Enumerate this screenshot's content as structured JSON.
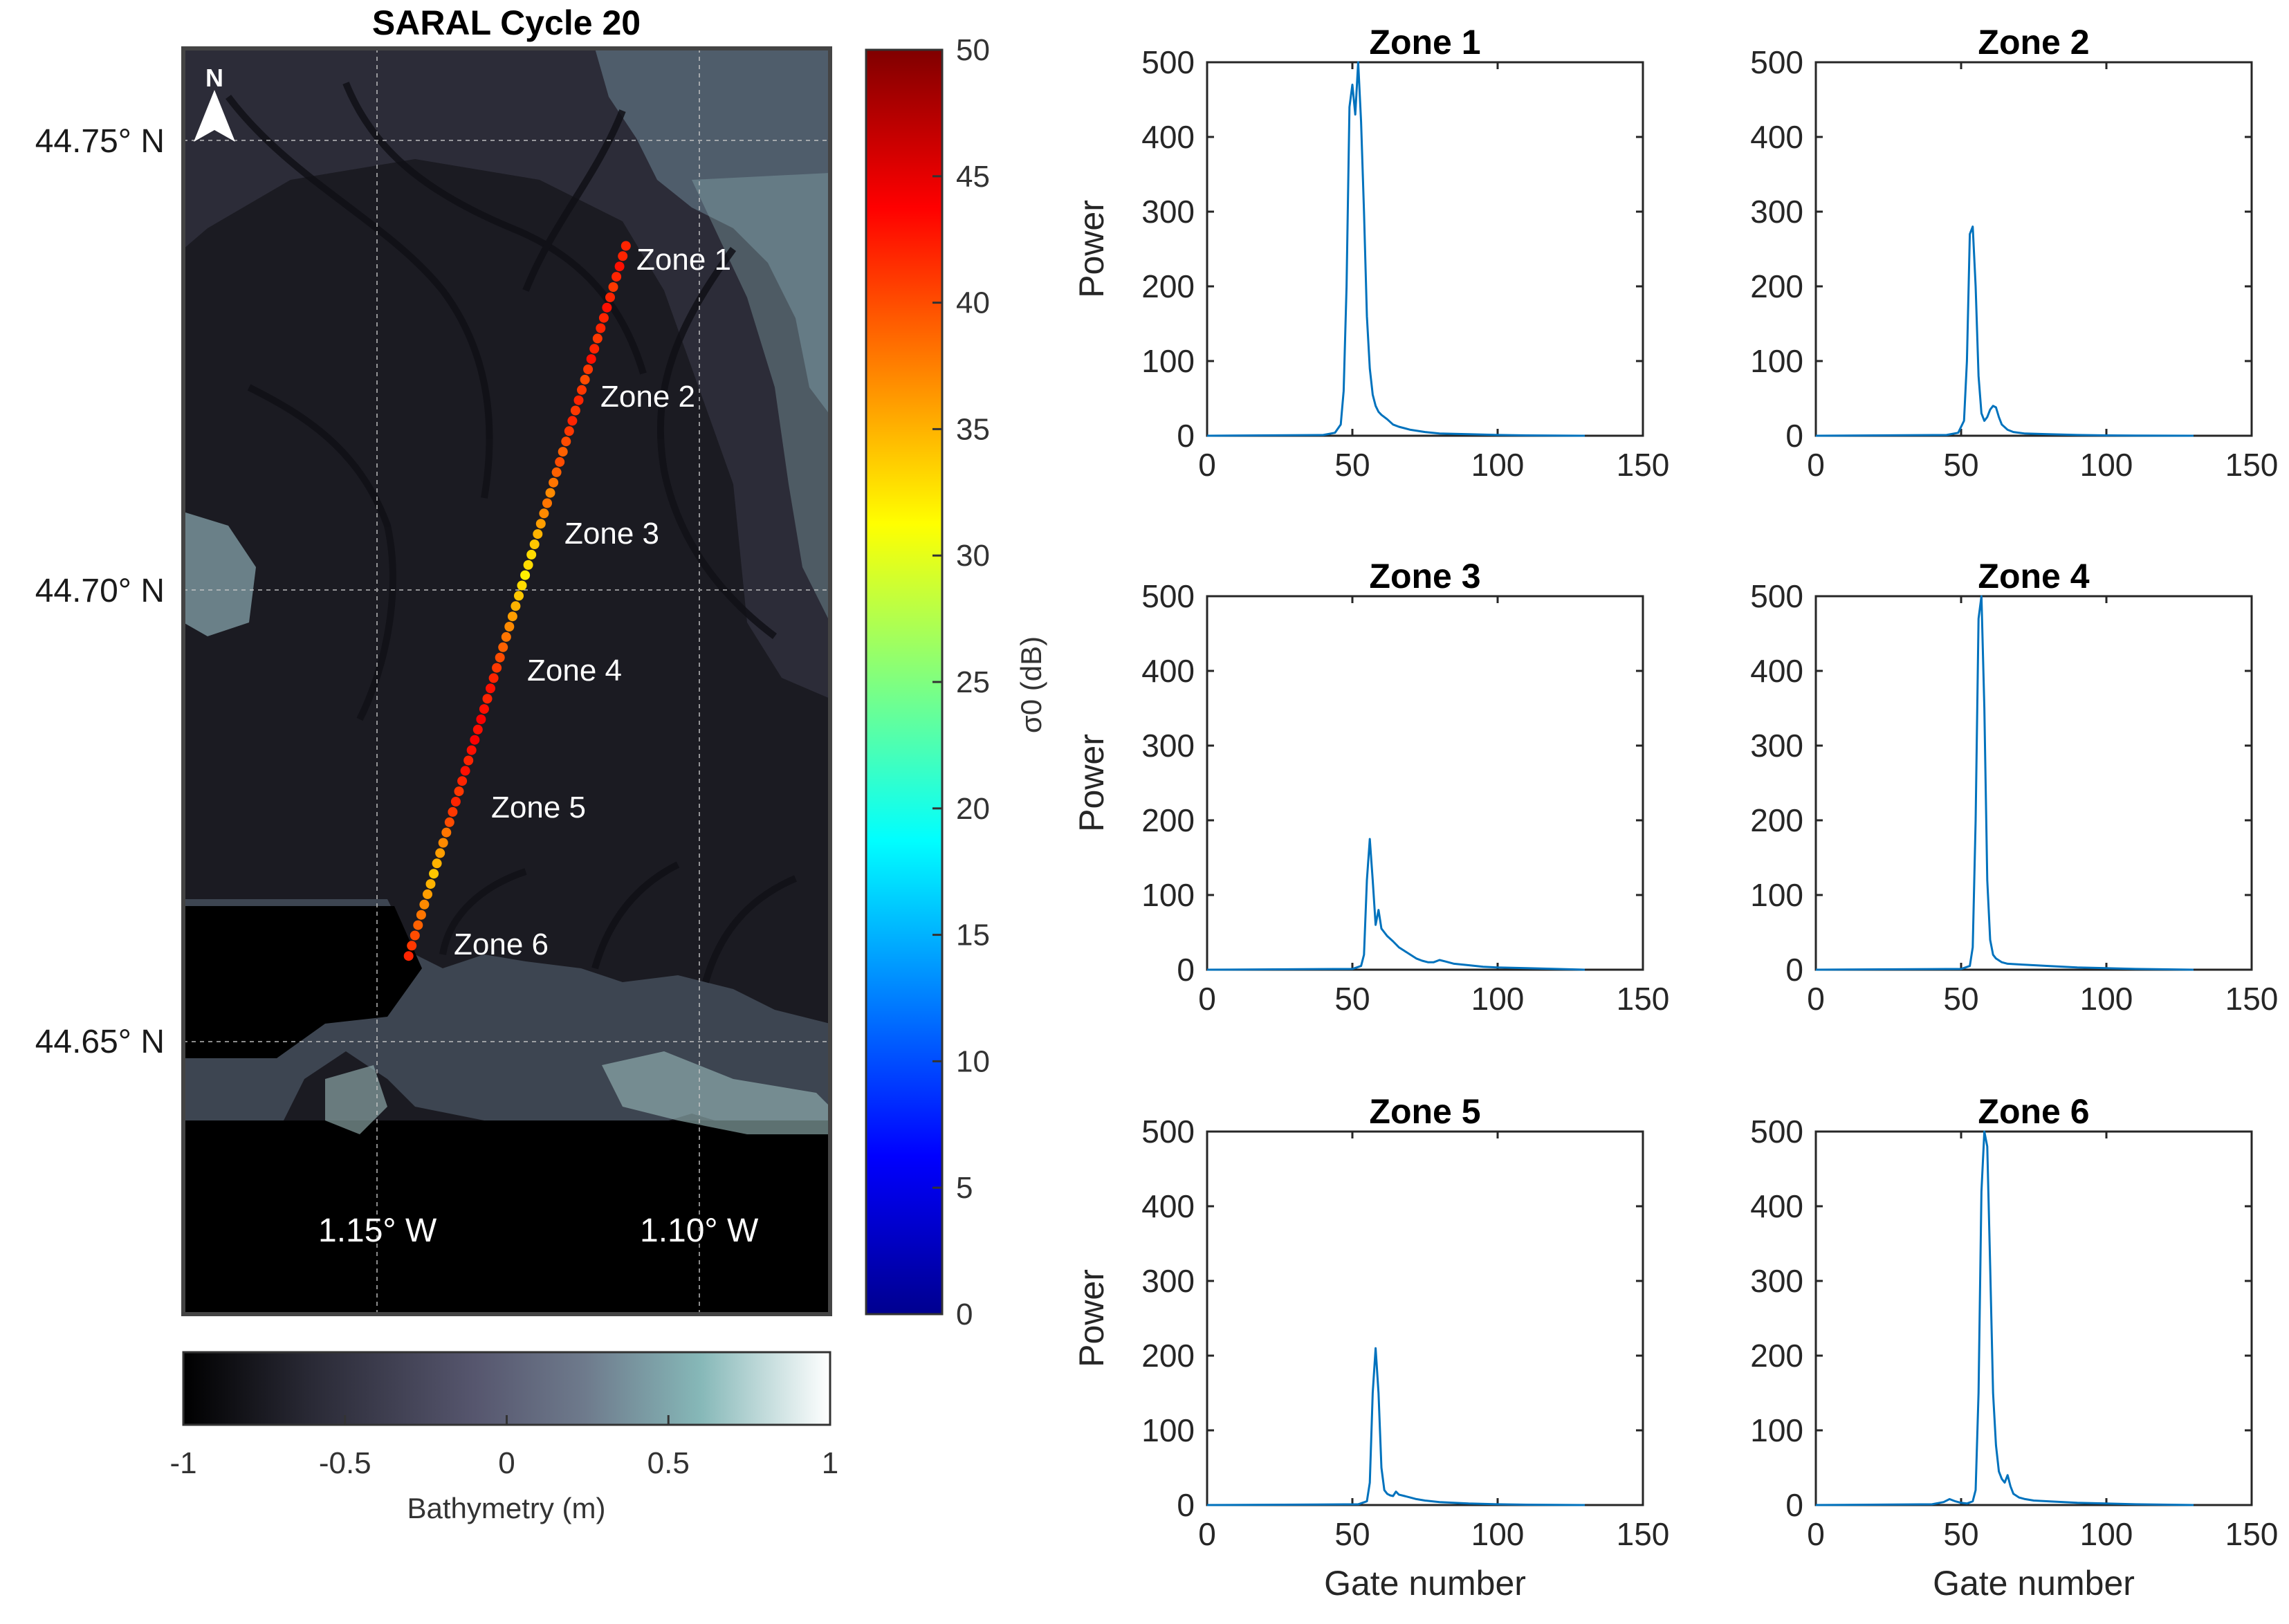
{
  "map": {
    "title": "SARAL Cycle 20",
    "north_label": "N",
    "lat_labels": [
      "44.75° N",
      "44.70° N",
      "44.65° N"
    ],
    "lon_labels": [
      "1.15° W",
      "1.10° W"
    ],
    "zone_labels": [
      "Zone 1",
      "Zone 2",
      "Zone 3",
      "Zone 4",
      "Zone 5",
      "Zone 6"
    ],
    "track": {
      "start": {
        "lon": -1.1114,
        "lat": 44.7383
      },
      "end": {
        "lon": -1.1451,
        "lat": 44.6595
      },
      "sigma0_db": [
        42,
        42,
        43,
        42,
        41,
        42,
        43,
        42,
        42,
        41,
        42,
        43,
        41,
        40,
        41,
        42,
        41,
        42,
        41,
        40,
        39,
        40,
        39,
        38,
        37,
        38,
        37,
        36,
        35,
        34,
        33,
        33,
        32,
        33,
        34,
        35,
        36,
        37,
        38,
        39,
        40,
        41,
        42,
        43,
        42,
        43,
        44,
        43,
        44,
        43,
        42,
        43,
        42,
        41,
        42,
        41,
        40,
        38,
        37,
        36,
        35,
        34,
        35,
        36,
        37,
        38,
        39,
        40,
        41,
        42
      ]
    },
    "sigma_colorbar": {
      "label": "σ0 (dB)",
      "ticks": [
        0,
        5,
        10,
        15,
        20,
        25,
        30,
        35,
        40,
        45,
        50
      ],
      "range": [
        0,
        50
      ],
      "colormap": "jet"
    },
    "bathymetry_colorbar": {
      "label": "Bathymetry (m)",
      "ticks": [
        "-1",
        "-0.5",
        "0",
        "0.5",
        "1"
      ],
      "range": [
        -1,
        1
      ],
      "colors": [
        "#000000",
        "#2a2a36",
        "#56566e",
        "#6e7a8c",
        "#86b8b8",
        "#ffffff"
      ]
    }
  },
  "chart_data": [
    {
      "type": "line",
      "title": "Zone 1",
      "xlabel": "",
      "ylabel": "Power",
      "xlim": [
        0,
        150
      ],
      "ylim": [
        0,
        500
      ],
      "xticks": [
        "0",
        "50",
        "100",
        "150"
      ],
      "yticks": [
        "0",
        "100",
        "200",
        "300",
        "400",
        "500"
      ],
      "color": "#0072bd",
      "x": [
        0,
        40,
        44,
        46,
        47,
        48,
        49,
        50,
        51,
        52,
        53,
        54,
        55,
        56,
        57,
        58,
        59,
        60,
        62,
        64,
        66,
        70,
        75,
        80,
        90,
        100,
        110,
        120,
        130
      ],
      "y": [
        0,
        1,
        4,
        15,
        60,
        200,
        440,
        470,
        430,
        500,
        420,
        300,
        160,
        90,
        55,
        40,
        32,
        28,
        22,
        15,
        12,
        8,
        5,
        3,
        2,
        1,
        0.5,
        0.3,
        0
      ]
    },
    {
      "type": "line",
      "title": "Zone 2",
      "xlabel": "",
      "ylabel": "",
      "xlim": [
        0,
        150
      ],
      "ylim": [
        0,
        500
      ],
      "xticks": [
        "0",
        "50",
        "100",
        "150"
      ],
      "yticks": [
        "0",
        "100",
        "200",
        "300",
        "400",
        "500"
      ],
      "color": "#0072bd",
      "x": [
        0,
        45,
        49,
        51,
        52,
        53,
        54,
        55,
        56,
        57,
        58,
        59,
        60,
        61,
        62,
        63,
        64,
        66,
        68,
        72,
        80,
        90,
        100,
        110,
        130
      ],
      "y": [
        0,
        1,
        4,
        20,
        100,
        270,
        280,
        200,
        80,
        30,
        20,
        25,
        35,
        40,
        38,
        25,
        15,
        8,
        5,
        3,
        2,
        1,
        0.5,
        0.3,
        0
      ]
    },
    {
      "type": "line",
      "title": "Zone 3",
      "xlabel": "",
      "ylabel": "Power",
      "xlim": [
        0,
        150
      ],
      "ylim": [
        0,
        500
      ],
      "xticks": [
        "0",
        "50",
        "100",
        "150"
      ],
      "yticks": [
        "0",
        "100",
        "200",
        "300",
        "400",
        "500"
      ],
      "color": "#0072bd",
      "x": [
        0,
        50,
        53,
        54,
        55,
        56,
        57,
        58,
        59,
        60,
        61,
        62,
        64,
        66,
        68,
        70,
        72,
        74,
        76,
        78,
        80,
        82,
        85,
        90,
        95,
        100,
        110,
        120,
        130
      ],
      "y": [
        0,
        1,
        5,
        20,
        120,
        175,
        120,
        60,
        80,
        55,
        50,
        45,
        38,
        30,
        25,
        20,
        15,
        12,
        10,
        10,
        13,
        11,
        8,
        6,
        4,
        3,
        2,
        1,
        0
      ]
    },
    {
      "type": "line",
      "title": "Zone 4",
      "xlabel": "",
      "ylabel": "",
      "xlim": [
        0,
        150
      ],
      "ylim": [
        0,
        500
      ],
      "xticks": [
        "0",
        "50",
        "100",
        "150"
      ],
      "yticks": [
        "0",
        "100",
        "200",
        "300",
        "400",
        "500"
      ],
      "color": "#0072bd",
      "x": [
        0,
        50,
        53,
        54,
        55,
        56,
        57,
        58,
        59,
        60,
        61,
        62,
        64,
        66,
        70,
        75,
        80,
        90,
        100,
        110,
        130
      ],
      "y": [
        0,
        1,
        5,
        30,
        200,
        470,
        500,
        350,
        120,
        40,
        20,
        15,
        10,
        8,
        7,
        6,
        5,
        3,
        2,
        1,
        0
      ]
    },
    {
      "type": "line",
      "title": "Zone 5",
      "xlabel": "Gate number",
      "ylabel": "Power",
      "xlim": [
        0,
        150
      ],
      "ylim": [
        0,
        500
      ],
      "xticks": [
        "0",
        "50",
        "100",
        "150"
      ],
      "yticks": [
        "0",
        "100",
        "200",
        "300",
        "400",
        "500"
      ],
      "color": "#0072bd",
      "x": [
        0,
        52,
        55,
        56,
        57,
        58,
        59,
        60,
        61,
        62,
        63,
        64,
        65,
        66,
        68,
        70,
        72,
        75,
        80,
        90,
        100,
        110,
        130
      ],
      "y": [
        0,
        1,
        5,
        30,
        150,
        210,
        150,
        50,
        20,
        15,
        13,
        12,
        18,
        14,
        12,
        10,
        8,
        6,
        4,
        2,
        1,
        0.5,
        0
      ]
    },
    {
      "type": "line",
      "title": "Zone 6",
      "xlabel": "Gate number",
      "ylabel": "",
      "xlim": [
        0,
        150
      ],
      "ylim": [
        0,
        500
      ],
      "xticks": [
        "0",
        "50",
        "100",
        "150"
      ],
      "yticks": [
        "0",
        "100",
        "200",
        "300",
        "400",
        "500"
      ],
      "color": "#0072bd",
      "x": [
        0,
        40,
        44,
        46,
        48,
        50,
        52,
        54,
        55,
        56,
        57,
        58,
        59,
        60,
        61,
        62,
        63,
        64,
        65,
        66,
        67,
        68,
        70,
        72,
        75,
        80,
        90,
        100,
        110,
        130
      ],
      "y": [
        0,
        1,
        4,
        8,
        5,
        3,
        2,
        5,
        20,
        150,
        420,
        500,
        480,
        320,
        150,
        80,
        45,
        35,
        30,
        40,
        25,
        15,
        10,
        8,
        6,
        5,
        3,
        2,
        1,
        0
      ]
    }
  ]
}
